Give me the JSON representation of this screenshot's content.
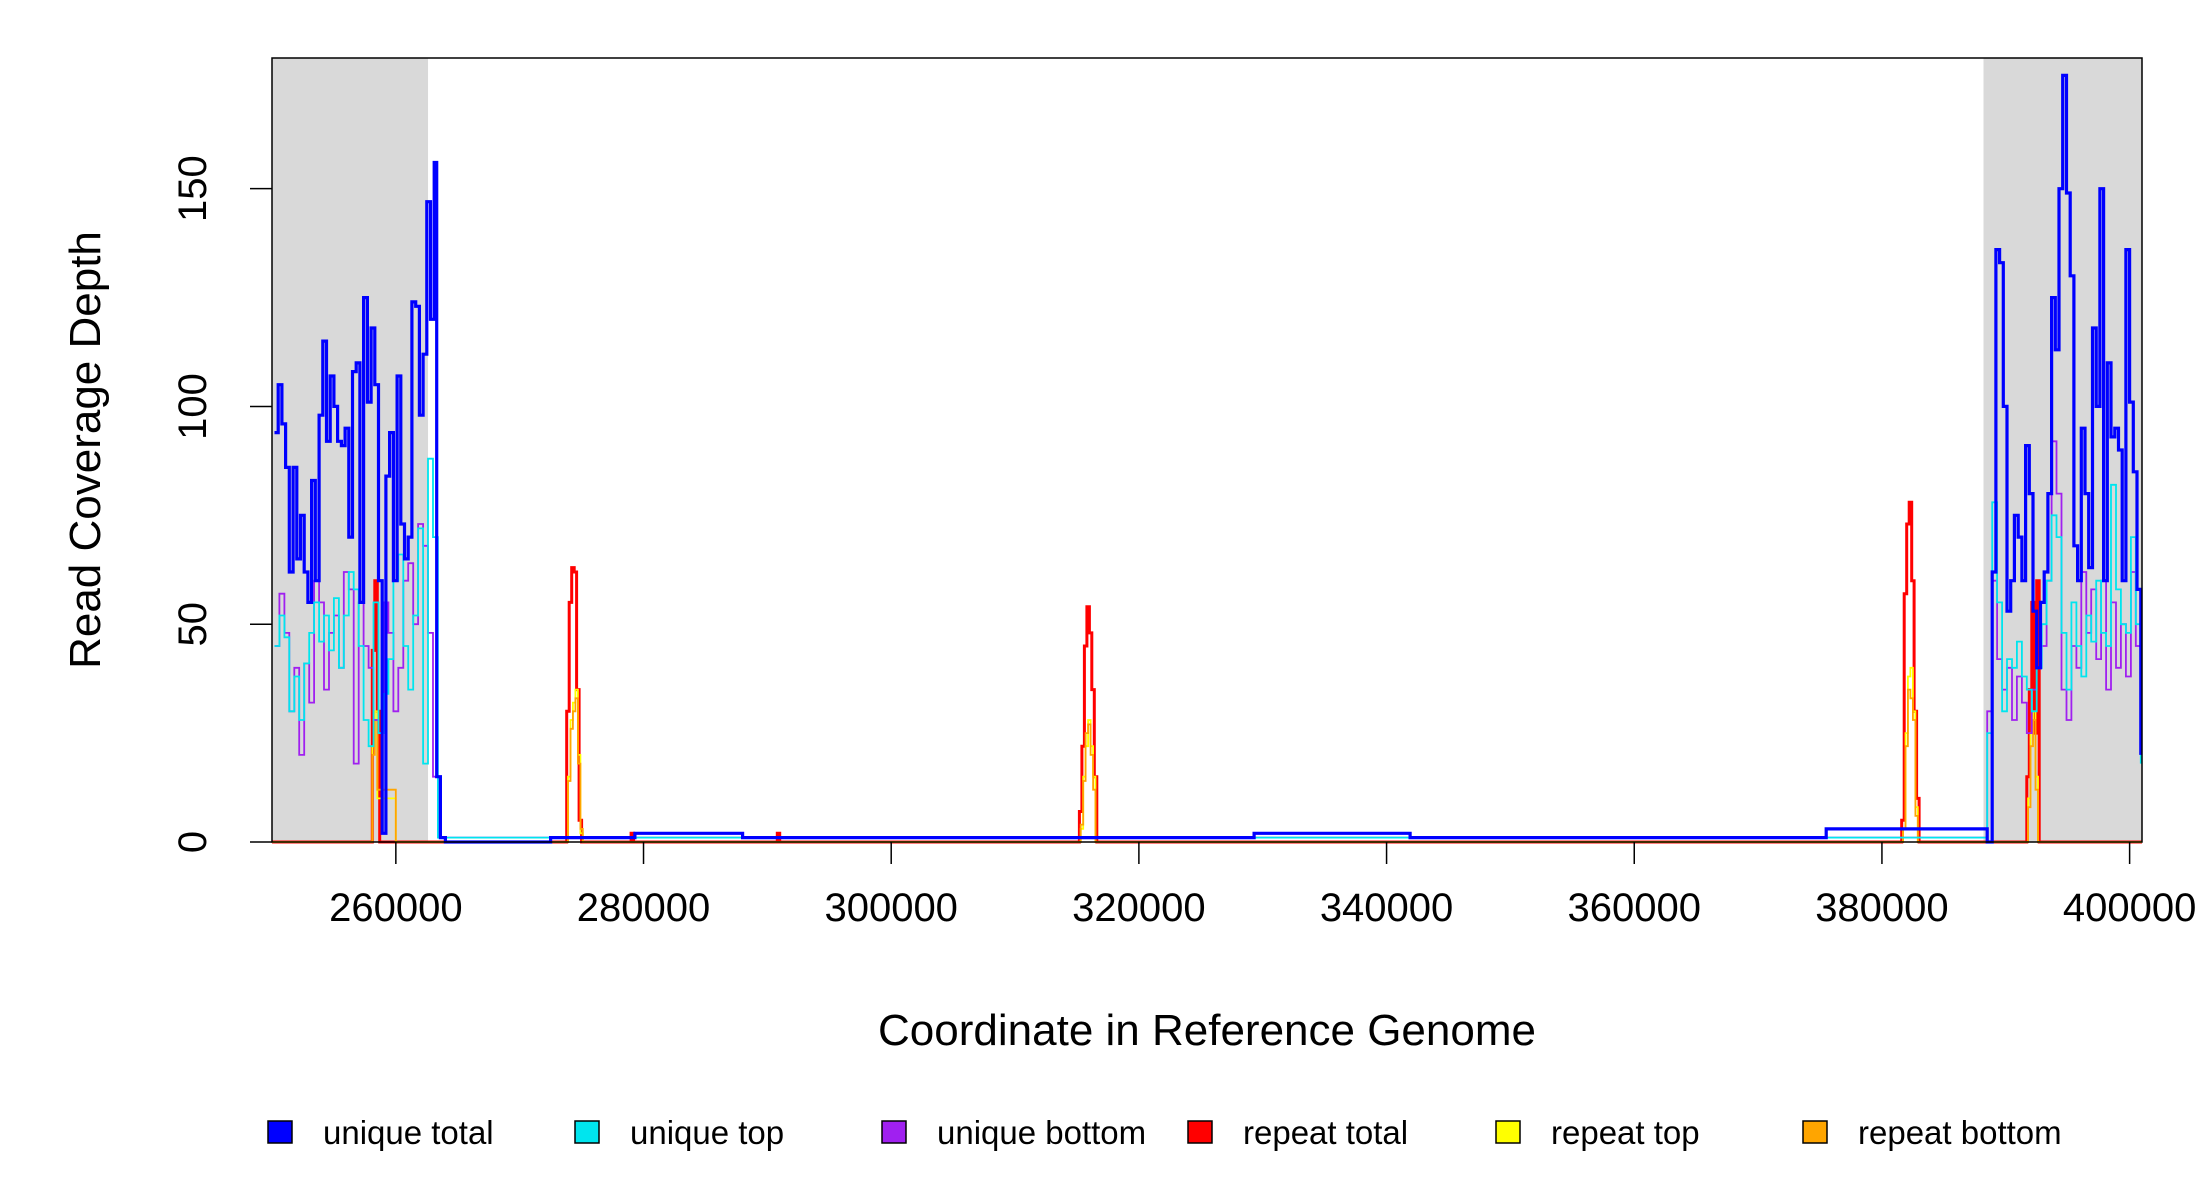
{
  "chart_data": {
    "type": "line",
    "title": "",
    "xlabel": "Coordinate in Reference Genome",
    "ylabel": "Read Coverage Depth",
    "xlim": [
      250000,
      401000
    ],
    "ylim": [
      0,
      180
    ],
    "x_ticks": [
      260000,
      280000,
      300000,
      320000,
      340000,
      360000,
      380000,
      400000
    ],
    "y_ticks": [
      0,
      50,
      100,
      150
    ],
    "shaded_regions": [
      [
        250000,
        262600
      ],
      [
        388200,
        401000
      ]
    ],
    "shade_color": "#d9d9d9",
    "legend_position": "bottom",
    "series": [
      {
        "name": "unique total",
        "color": "#0000ff",
        "x": [
          250200,
          250500,
          250800,
          251100,
          251400,
          251700,
          252000,
          252300,
          252600,
          252900,
          253200,
          253500,
          253800,
          254100,
          254400,
          254700,
          255000,
          255300,
          255600,
          255900,
          256200,
          256500,
          256800,
          257100,
          257400,
          257700,
          258000,
          258300,
          258600,
          258900,
          259200,
          259500,
          259800,
          260100,
          260400,
          260700,
          261000,
          261300,
          261600,
          261900,
          262200,
          262500,
          262800,
          263100,
          263300,
          263600,
          264000,
          272500,
          279300,
          288000,
          306000,
          310500,
          313000,
          324000,
          329300,
          341900,
          350300,
          373400,
          375500,
          388500,
          388900,
          389200,
          389500,
          389800,
          390100,
          390400,
          390700,
          391000,
          391300,
          391600,
          391900,
          392200,
          392500,
          392800,
          393100,
          393400,
          393700,
          394000,
          394300,
          394600,
          394900,
          395200,
          395500,
          395800,
          396100,
          396400,
          396700,
          397000,
          397300,
          397600,
          397900,
          398200,
          398500,
          398800,
          399100,
          399400,
          399700,
          400000,
          400300,
          400600,
          400900
        ],
        "values": [
          94,
          105,
          96,
          86,
          62,
          86,
          65,
          75,
          62,
          55,
          83,
          60,
          98,
          115,
          92,
          107,
          100,
          92,
          91,
          95,
          70,
          108,
          110,
          55,
          125,
          101,
          118,
          105,
          60,
          2,
          84,
          94,
          60,
          107,
          73,
          65,
          70,
          124,
          123,
          98,
          112,
          147,
          120,
          156,
          15,
          1,
          0,
          1,
          2,
          1,
          1,
          1,
          1,
          1,
          2,
          1,
          1,
          1,
          3,
          0,
          62,
          136,
          133,
          100,
          53,
          60,
          75,
          70,
          60,
          91,
          80,
          53,
          40,
          55,
          62,
          80,
          125,
          113,
          150,
          176,
          149,
          130,
          68,
          60,
          95,
          80,
          63,
          118,
          100,
          150,
          60,
          110,
          93,
          95,
          90,
          60,
          136,
          101,
          85,
          58,
          20
        ]
      },
      {
        "name": "unique top",
        "color": "#00e5ee",
        "x": [
          250200,
          250600,
          251000,
          251400,
          251800,
          252200,
          252600,
          253000,
          253400,
          253800,
          254200,
          254600,
          255000,
          255400,
          255800,
          256200,
          256600,
          257000,
          257400,
          257800,
          258200,
          258600,
          259000,
          259400,
          259800,
          260200,
          260600,
          261000,
          261400,
          261800,
          262200,
          262600,
          263000,
          263400,
          388500,
          388900,
          389300,
          389700,
          390100,
          390500,
          390900,
          391300,
          391700,
          392100,
          392500,
          392900,
          393300,
          393700,
          394100,
          394500,
          394900,
          395300,
          395700,
          396100,
          396500,
          396900,
          397300,
          397700,
          398100,
          398500,
          398900,
          399300,
          399700,
          400100,
          400500,
          400900
        ],
        "values": [
          45,
          52,
          47,
          30,
          38,
          28,
          41,
          48,
          55,
          46,
          52,
          44,
          56,
          40,
          52,
          62,
          58,
          45,
          28,
          22,
          55,
          25,
          34,
          42,
          60,
          66,
          45,
          35,
          52,
          72,
          18,
          88,
          70,
          1,
          25,
          78,
          55,
          30,
          42,
          40,
          46,
          38,
          35,
          30,
          40,
          50,
          60,
          75,
          70,
          48,
          35,
          55,
          45,
          38,
          52,
          46,
          60,
          48,
          45,
          82,
          58,
          50,
          48,
          70,
          50,
          18
        ]
      },
      {
        "name": "unique bottom",
        "color": "#a020f0",
        "x": [
          250200,
          250600,
          251000,
          251400,
          251800,
          252200,
          252600,
          253000,
          253400,
          253800,
          254200,
          254600,
          255000,
          255400,
          255800,
          256200,
          256600,
          257000,
          257400,
          257800,
          258200,
          258600,
          259000,
          259400,
          259800,
          260200,
          260600,
          261000,
          261400,
          261800,
          262200,
          262600,
          263000,
          263400,
          388500,
          388900,
          389300,
          389700,
          390100,
          390500,
          390900,
          391300,
          391700,
          392100,
          392500,
          392900,
          393300,
          393700,
          394100,
          394500,
          394900,
          395300,
          395700,
          396100,
          396500,
          396900,
          397300,
          397700,
          398100,
          398500,
          398900,
          399300,
          399700,
          400100,
          400500,
          400900
        ],
        "values": [
          45,
          57,
          48,
          30,
          40,
          20,
          41,
          32,
          60,
          55,
          35,
          48,
          52,
          40,
          62,
          58,
          18,
          55,
          45,
          40,
          28,
          25,
          55,
          48,
          30,
          40,
          60,
          64,
          50,
          73,
          68,
          48,
          15,
          1,
          30,
          60,
          42,
          35,
          40,
          28,
          38,
          32,
          25,
          35,
          40,
          45,
          60,
          92,
          80,
          35,
          28,
          45,
          40,
          62,
          48,
          58,
          42,
          60,
          35,
          55,
          40,
          50,
          38,
          62,
          45,
          30
        ]
      },
      {
        "name": "repeat total",
        "color": "#ff0000",
        "x": [
          250000,
          257900,
          258100,
          258300,
          258500,
          258700,
          260000,
          273600,
          273800,
          274000,
          274200,
          274400,
          274600,
          274800,
          275000,
          275200,
          279000,
          279200,
          290800,
          291000,
          315000,
          315200,
          315400,
          315600,
          315800,
          316000,
          316200,
          316400,
          316600,
          381400,
          381600,
          381800,
          382000,
          382200,
          382400,
          382600,
          382800,
          383000,
          391500,
          391700,
          391900,
          392100,
          392300,
          392500,
          392700,
          401000
        ],
        "values": [
          0,
          0,
          44,
          60,
          30,
          0,
          0,
          0,
          30,
          55,
          63,
          62,
          35,
          5,
          0,
          0,
          2,
          0,
          2,
          0,
          0,
          7,
          22,
          45,
          54,
          48,
          35,
          15,
          0,
          0,
          5,
          57,
          73,
          78,
          60,
          30,
          10,
          0,
          0,
          15,
          35,
          55,
          25,
          60,
          0,
          0
        ]
      },
      {
        "name": "repeat top",
        "color": "#ffff00",
        "x": [
          250000,
          257900,
          258100,
          258300,
          258500,
          260000,
          273700,
          273900,
          274100,
          274300,
          274500,
          274700,
          274900,
          275100,
          315100,
          315300,
          315500,
          315700,
          315900,
          316100,
          316300,
          316500,
          381500,
          381700,
          381900,
          382100,
          382300,
          382500,
          382700,
          382900,
          391600,
          391800,
          392000,
          392200,
          392400,
          392600,
          401000
        ],
        "values": [
          0,
          0,
          22,
          30,
          10,
          0,
          0,
          15,
          28,
          32,
          35,
          20,
          2,
          0,
          0,
          3,
          15,
          22,
          28,
          22,
          15,
          0,
          0,
          3,
          25,
          38,
          40,
          30,
          8,
          0,
          0,
          10,
          25,
          30,
          15,
          0,
          0
        ]
      },
      {
        "name": "repeat bottom",
        "color": "#ffa500",
        "x": [
          250000,
          257900,
          258100,
          258300,
          258500,
          260000,
          273700,
          273900,
          274100,
          274300,
          274500,
          274700,
          274900,
          275100,
          315100,
          315300,
          315500,
          315700,
          315900,
          316100,
          316300,
          316500,
          381500,
          381700,
          381900,
          382100,
          382300,
          382500,
          382700,
          382900,
          391600,
          391800,
          392000,
          392200,
          392400,
          392600,
          401000
        ],
        "values": [
          0,
          0,
          20,
          28,
          12,
          0,
          0,
          14,
          26,
          30,
          33,
          18,
          3,
          0,
          0,
          4,
          14,
          25,
          27,
          20,
          12,
          0,
          0,
          3,
          22,
          35,
          33,
          28,
          6,
          0,
          0,
          8,
          22,
          28,
          12,
          0,
          0
        ]
      }
    ]
  }
}
